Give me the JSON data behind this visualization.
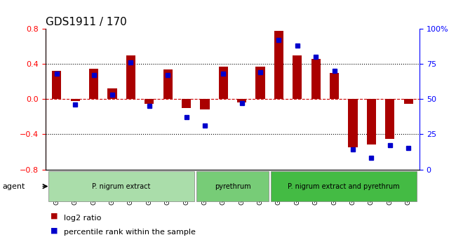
{
  "title": "GDS1911 / 170",
  "samples": [
    "GSM66824",
    "GSM66825",
    "GSM66826",
    "GSM66827",
    "GSM66828",
    "GSM66829",
    "GSM66830",
    "GSM66831",
    "GSM66840",
    "GSM66841",
    "GSM66842",
    "GSM66843",
    "GSM66832",
    "GSM66833",
    "GSM66834",
    "GSM66835",
    "GSM66836",
    "GSM66837",
    "GSM66838",
    "GSM66839"
  ],
  "log2_ratio": [
    0.32,
    -0.02,
    0.35,
    0.12,
    0.5,
    -0.05,
    0.34,
    -0.1,
    -0.12,
    0.37,
    -0.04,
    0.37,
    0.78,
    0.5,
    0.46,
    0.3,
    -0.55,
    -0.52,
    -0.45,
    -0.05
  ],
  "percentile": [
    68,
    46,
    67,
    53,
    76,
    45,
    67,
    37,
    31,
    68,
    47,
    69,
    92,
    88,
    80,
    70,
    14,
    8,
    17,
    15
  ],
  "groups": [
    {
      "label": "P. nigrum extract",
      "start": 0,
      "end": 8,
      "color": "#90EE90"
    },
    {
      "label": "pyrethrum",
      "start": 8,
      "end": 12,
      "color": "#66CC66"
    },
    {
      "label": "P. nigrum extract and pyrethrum",
      "start": 12,
      "end": 20,
      "color": "#44BB44"
    }
  ],
  "ylim": [
    -0.8,
    0.8
  ],
  "yticks_left": [
    -0.8,
    -0.4,
    0.0,
    0.4,
    0.8
  ],
  "yticks_right": [
    0,
    25,
    50,
    75,
    100
  ],
  "bar_color": "#AA0000",
  "dot_color": "#0000CC",
  "hline_color": "#CC0000",
  "grid_color": "#000000",
  "background_color": "#F0F0F0",
  "agent_label": "agent",
  "legend_bar": "log2 ratio",
  "legend_dot": "percentile rank within the sample"
}
